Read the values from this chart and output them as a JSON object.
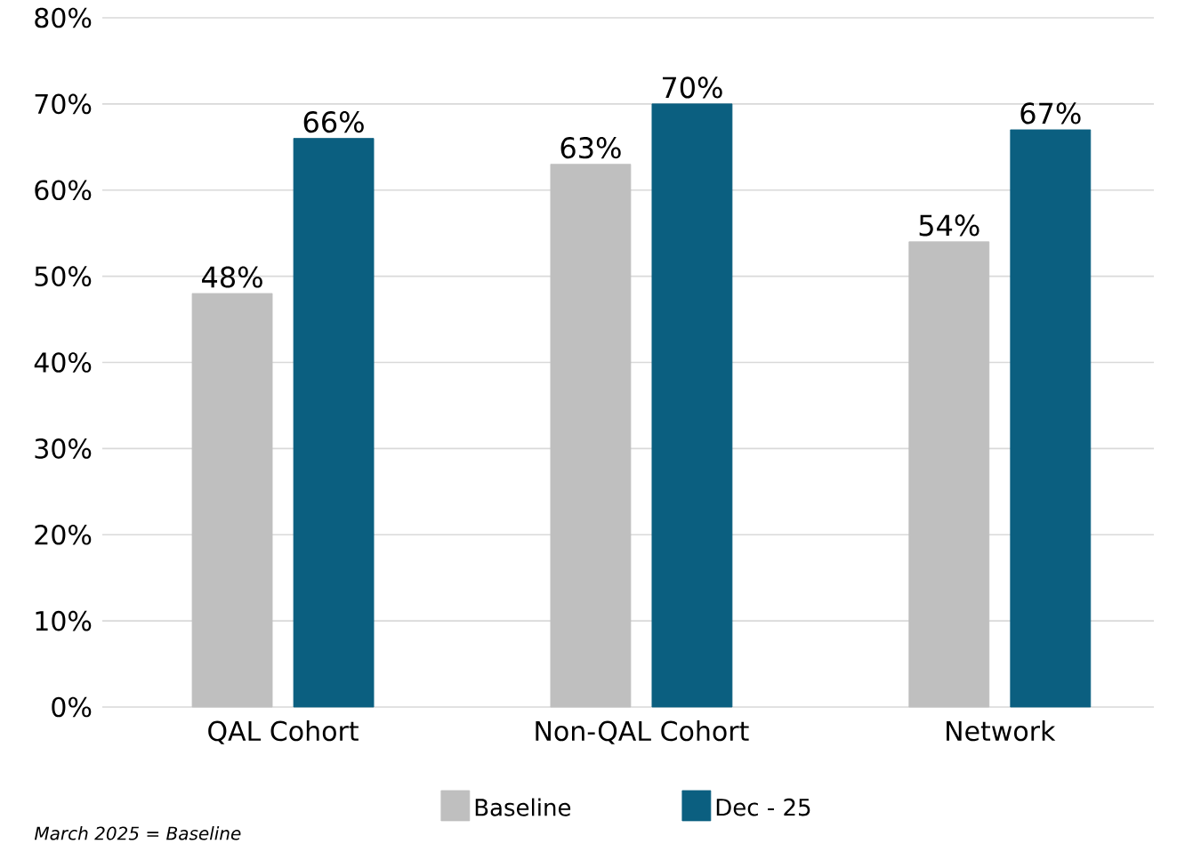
{
  "chart_data": {
    "type": "bar",
    "categories": [
      "QAL Cohort",
      "Non-QAL Cohort",
      "Network"
    ],
    "series": [
      {
        "name": "Baseline",
        "color": "#bfbfbf",
        "values": [
          48,
          63,
          54
        ],
        "value_labels": [
          "48%",
          "63%",
          "54%"
        ]
      },
      {
        "name": "Dec - 25",
        "color": "#0b5f80",
        "values": [
          66,
          70,
          67
        ],
        "value_labels": [
          "66%",
          "70%",
          "67%"
        ]
      }
    ],
    "ylim": [
      0,
      80
    ],
    "yticks": [
      {
        "value": 0,
        "label": "0%"
      },
      {
        "value": 10,
        "label": "10%"
      },
      {
        "value": 20,
        "label": "20%"
      },
      {
        "value": 30,
        "label": "30%"
      },
      {
        "value": 40,
        "label": "40%"
      },
      {
        "value": 50,
        "label": "50%"
      },
      {
        "value": 60,
        "label": "60%"
      },
      {
        "value": 70,
        "label": "70%"
      },
      {
        "value": 80,
        "label": "80%"
      }
    ],
    "grid": "y",
    "legend": "bottom",
    "annotations": [
      "*March 2025 = Baseline*"
    ]
  }
}
